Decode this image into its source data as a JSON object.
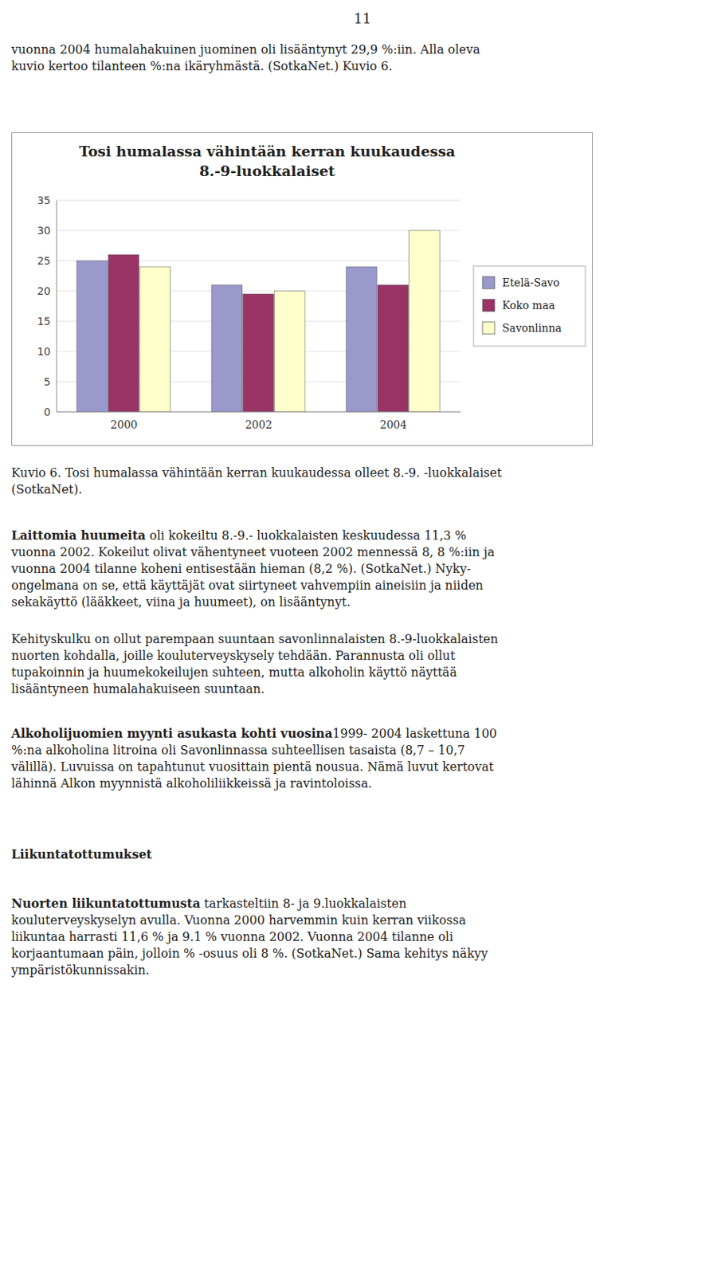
{
  "chart_data": {
    "type": "bar",
    "title": "Tosi humalassa vähintään kerran kuukaudessa",
    "subtitle": "8.-9-luokkalaiset",
    "categories": [
      "2000",
      "2002",
      "2004"
    ],
    "series": [
      {
        "name": "Etelä-Savo",
        "color": "#9999CC",
        "values": [
          25,
          21,
          24
        ]
      },
      {
        "name": "Koko maa",
        "color": "#993366",
        "values": [
          26,
          19.5,
          21
        ]
      },
      {
        "name": "Savonlinna",
        "color": "#FFFFCC",
        "values": [
          24,
          20,
          30
        ]
      }
    ],
    "ylim": [
      0,
      35
    ],
    "yticks": [
      0,
      5,
      10,
      15,
      20,
      25,
      30,
      35
    ],
    "grid": true,
    "legend": "right"
  },
  "page": {
    "page_number": "11",
    "intro": "vuonna 2004 humalahakuinen juominen oli lisääntynyt 29,9 %:iin. Alla oleva\nkuvio kertoo tilanteen %:na ikäryhmästä. (SotkaNet.) Kuvio 6.",
    "caption": "Kuvio 6. Tosi humalassa vähintään kerran kuukaudessa olleet 8.-9. -luokkalaiset\n(SotkaNet).",
    "para1_bold": "Laittomia huumeita",
    "para1_rest": " oli kokeiltu 8.-9.- luokkalaisten keskuudessa 11,3 %\nvuonna 2002. Kokeilut olivat vähentyneet vuoteen 2002 mennessä 8, 8 %:iin ja\nvuonna 2004 tilanne koheni entisestään hieman (8,2 %). (SotkaNet.) Nyky-\nongelmana on se, että käyttäjät ovat siirtyneet vahvempiin aineisiin ja niiden\nsekakäyttö (lääkkeet, viina ja huumeet), on lisääntynyt.",
    "para2": "Kehityskulku on ollut parempaan suuntaan savonlinnalaisten 8.-9-luokkalaisten\nnuorten kohdalla, joille kouluterveyskysely tehdään. Parannusta oli ollut\ntupakoinnin ja huumekokeilujen suhteen, mutta alkoholin käyttö näyttää\nlisääntyneen humalahakuiseen suuntaan.",
    "para3_bold": "Alkoholijuomien myynti asukasta kohti vuosina",
    "para3_rest": "1999- 2004 laskettuna 100\n%:na alkoholina litroina oli Savonlinnassa suhteellisen tasaista (8,7 – 10,7\nvälillä). Luvuissa on tapahtunut vuosittain pientä nousua. Nämä luvut kertovat\nlähinnä Alkon myynnistä alkoholiliikkeissä ja ravintoloissa.",
    "heading2": "Liikuntatottumukset",
    "para4_bold": "Nuorten liikuntatottumusta",
    "para4_rest": " tarkasteltiin 8- ja 9.luokkalaisten\nkouluterveyskyselyn avulla. Vuonna 2000 harvemmin kuin kerran viikossa\nliikuntaa harrasti 11,6 % ja 9.1 % vuonna 2002. Vuonna 2004 tilanne oli\nkorjaantumaan päin, jolloin % -osuus oli 8 %. (SotkaNet.) Sama kehitys näkyy\nympäristökunnissakin."
  }
}
